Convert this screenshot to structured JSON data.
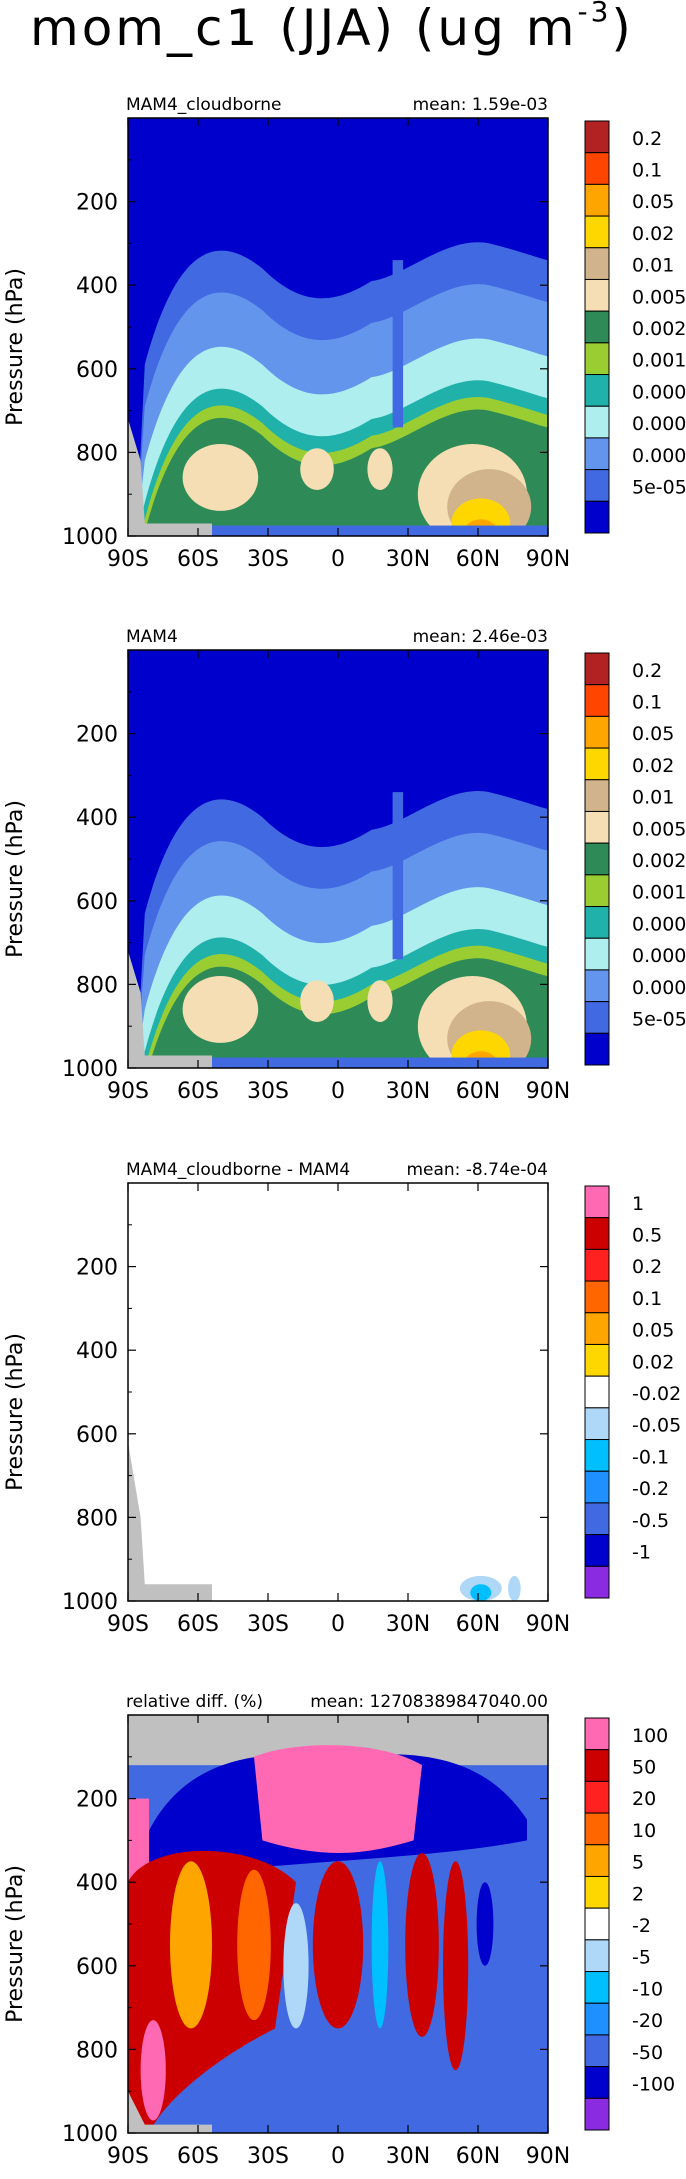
{
  "page_title": "mom_c1 (JJA) (ug m",
  "page_title_sup": "-3",
  "page_title_close": ")",
  "chart_data": [
    {
      "type": "heatmap",
      "title": "MAM4_cloudborne",
      "mean_label": "mean: 1.59e-03",
      "ylabel": "Pressure (hPa)",
      "x_ticks": [
        "90S",
        "60S",
        "30S",
        "0",
        "30N",
        "60N",
        "90N"
      ],
      "y_ticks": [
        "200",
        "400",
        "600",
        "800",
        "1000"
      ],
      "ylim": [
        1000,
        0
      ],
      "legend_labels": [
        "0.2",
        "0.1",
        "0.05",
        "0.02",
        "0.01",
        "0.005",
        "0.002",
        "0.001",
        "0.0005",
        "0.0002",
        "0.0001",
        "5e-05"
      ],
      "legend_colors": [
        "#b22222",
        "#ff4500",
        "#ffa500",
        "#ffd700",
        "#d2b48c",
        "#f5deb3",
        "#2e8b57",
        "#9acd32",
        "#20b2aa",
        "#afeeee",
        "#6495ed",
        "#4169e1",
        "#0000cd"
      ]
    },
    {
      "type": "heatmap",
      "title": "MAM4",
      "mean_label": "mean: 2.46e-03",
      "ylabel": "Pressure (hPa)",
      "x_ticks": [
        "90S",
        "60S",
        "30S",
        "0",
        "30N",
        "60N",
        "90N"
      ],
      "y_ticks": [
        "200",
        "400",
        "600",
        "800",
        "1000"
      ],
      "ylim": [
        1000,
        0
      ],
      "legend_labels": [
        "0.2",
        "0.1",
        "0.05",
        "0.02",
        "0.01",
        "0.005",
        "0.002",
        "0.001",
        "0.0005",
        "0.0002",
        "0.0001",
        "5e-05"
      ],
      "legend_colors": [
        "#b22222",
        "#ff4500",
        "#ffa500",
        "#ffd700",
        "#d2b48c",
        "#f5deb3",
        "#2e8b57",
        "#9acd32",
        "#20b2aa",
        "#afeeee",
        "#6495ed",
        "#4169e1",
        "#0000cd"
      ]
    },
    {
      "type": "heatmap",
      "title": "MAM4_cloudborne - MAM4",
      "mean_label": "mean: -8.74e-04",
      "ylabel": "Pressure (hPa)",
      "x_ticks": [
        "90S",
        "60S",
        "30S",
        "0",
        "30N",
        "60N",
        "90N"
      ],
      "y_ticks": [
        "200",
        "400",
        "600",
        "800",
        "1000"
      ],
      "ylim": [
        1000,
        0
      ],
      "legend_labels": [
        "1",
        "0.5",
        "0.2",
        "0.1",
        "0.05",
        "0.02",
        "-0.02",
        "-0.05",
        "-0.1",
        "-0.2",
        "-0.5",
        "-1"
      ],
      "legend_colors": [
        "#ff69b4",
        "#cc0000",
        "#ff2020",
        "#ff6600",
        "#ffa500",
        "#ffd700",
        "#ffffff",
        "#afd8f8",
        "#00bfff",
        "#1e90ff",
        "#4169e1",
        "#0000cd",
        "#8a2be2"
      ]
    },
    {
      "type": "heatmap",
      "title": "relative diff. (%)",
      "mean_label": "mean: 12708389847040.00",
      "ylabel": "Pressure (hPa)",
      "x_ticks": [
        "90S",
        "60S",
        "30S",
        "0",
        "30N",
        "60N",
        "90N"
      ],
      "y_ticks": [
        "200",
        "400",
        "600",
        "800",
        "1000"
      ],
      "ylim": [
        1000,
        0
      ],
      "legend_labels": [
        "100",
        "50",
        "20",
        "10",
        "5",
        "2",
        "-2",
        "-5",
        "-10",
        "-20",
        "-50",
        "-100"
      ],
      "legend_colors": [
        "#ff69b4",
        "#cc0000",
        "#ff2020",
        "#ff6600",
        "#ffa500",
        "#ffd700",
        "#ffffff",
        "#afd8f8",
        "#00bfff",
        "#1e90ff",
        "#4169e1",
        "#0000cd",
        "#8a2be2"
      ]
    }
  ]
}
